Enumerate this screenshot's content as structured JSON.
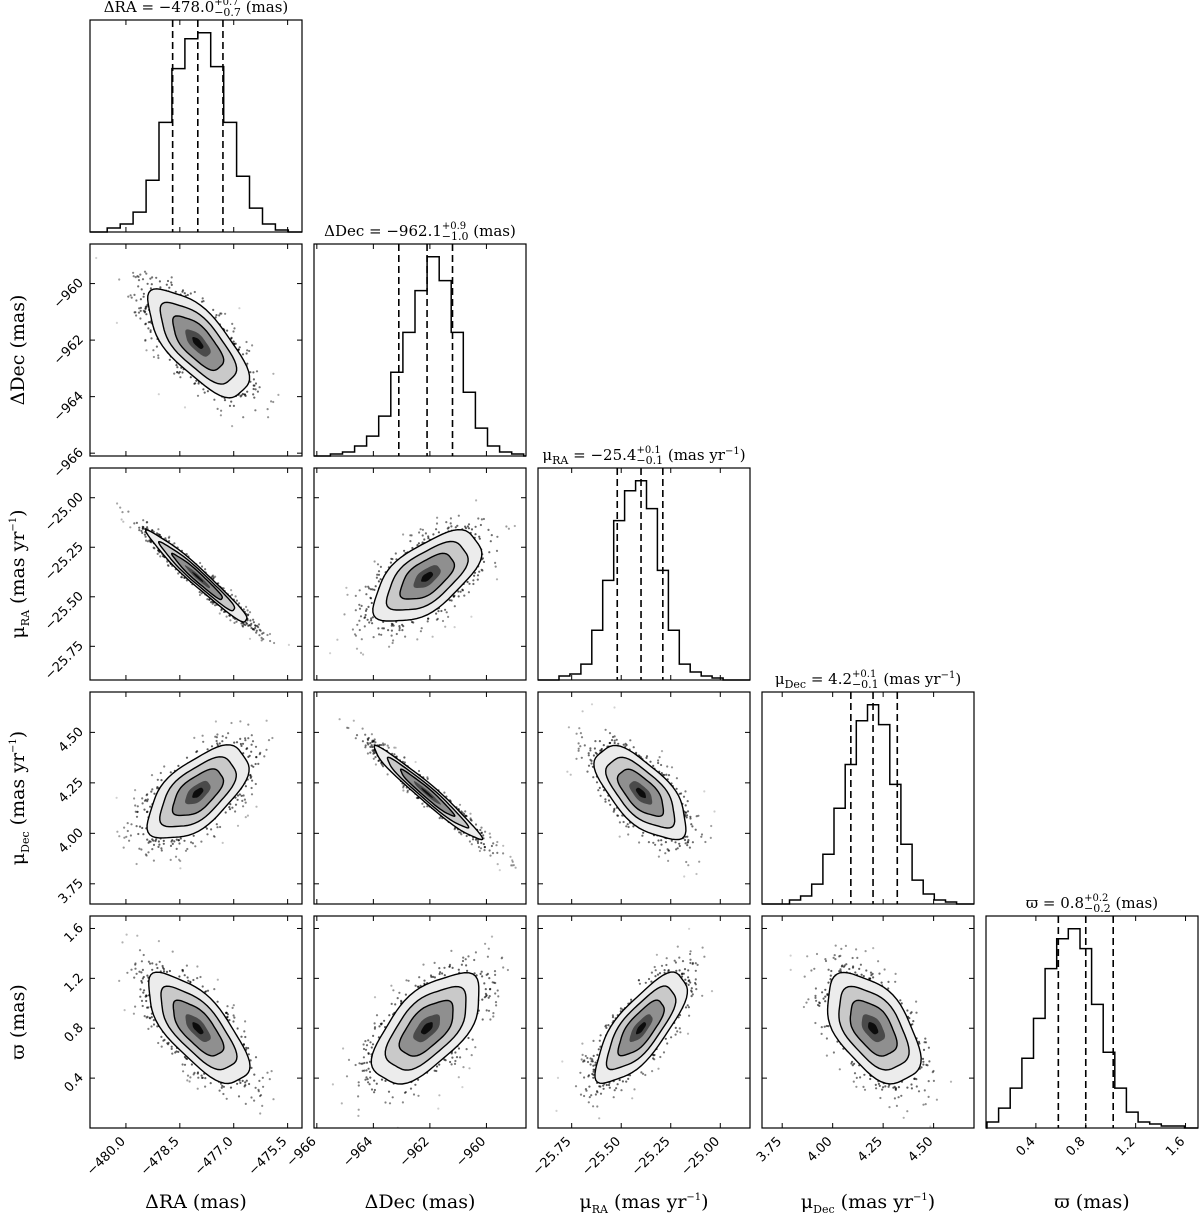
{
  "chart_data": {
    "type": "scatter",
    "title": "",
    "parameters": [
      {
        "key": "dra",
        "axis_label": "ΔRA (mas)",
        "title": {
          "pre": "ΔRA = −478.0",
          "sup": "+0.7",
          "sub": "−0.7",
          "post": " (mas)"
        },
        "median": -478.0,
        "q16": -478.7,
        "q84": -477.3,
        "range": [
          -481.0,
          -475.1
        ],
        "ticks": [
          -480.0,
          -478.5,
          -477.0,
          -475.5
        ],
        "tick_labels": [
          "−480.0",
          "−478.5",
          "−477.0",
          "−475.5"
        ],
        "hist": [
          0.02,
          0.04,
          0.1,
          0.26,
          0.55,
          0.82,
          0.97,
          1.0,
          0.83,
          0.55,
          0.28,
          0.12,
          0.04,
          0.01
        ]
      },
      {
        "key": "ddec",
        "axis_label": "ΔDec (mas)",
        "title": {
          "pre": "ΔDec = −962.1",
          "sup": "+0.9",
          "sub": "−1.0",
          "post": " (mas)"
        },
        "median": -962.1,
        "q16": -963.1,
        "q84": -961.2,
        "range": [
          -966.1,
          -958.6
        ],
        "ticks": [
          -966,
          -964,
          -962,
          -960
        ],
        "tick_labels": [
          "−966",
          "−964",
          "−962",
          "−960"
        ],
        "hist": [
          0.01,
          0.02,
          0.05,
          0.1,
          0.2,
          0.42,
          0.62,
          0.83,
          1.0,
          0.88,
          0.62,
          0.32,
          0.14,
          0.05,
          0.02,
          0.01
        ]
      },
      {
        "key": "pmra",
        "axis_label": "μRA (mas yr−1)",
        "label": {
          "sym": "μ",
          "sub": "RA",
          "unit": " (mas yr",
          "sup": "−1",
          "close": ")"
        },
        "title": {
          "pre": "= −25.4",
          "sup": "+0.1",
          "sub": "−0.1",
          "post": " (mas yr",
          "post_sup": "−1",
          "post_close": ")"
        },
        "median": -25.4,
        "q16": -25.52,
        "q84": -25.29,
        "range": [
          -25.92,
          -24.85
        ],
        "ticks": [
          -25.75,
          -25.5,
          -25.25,
          -25.0
        ],
        "tick_labels": [
          "−25.75",
          "−25.50",
          "−25.25",
          "−25.00"
        ],
        "hist": [
          0.02,
          0.03,
          0.08,
          0.25,
          0.5,
          0.8,
          0.95,
          1.0,
          0.86,
          0.55,
          0.25,
          0.08,
          0.04,
          0.02,
          0.01
        ]
      },
      {
        "key": "pmdec",
        "axis_label": "μDec (mas yr−1)",
        "label": {
          "sym": "μ",
          "sub": "Dec",
          "unit": " (mas yr",
          "sup": "−1",
          "close": ")"
        },
        "title": {
          "pre": "= 4.2",
          "sup": "+0.1",
          "sub": "−0.1",
          "post": " (mas yr",
          "post_sup": "−1",
          "post_close": ")"
        },
        "median": 4.2,
        "q16": 4.09,
        "q84": 4.32,
        "range": [
          3.65,
          4.7
        ],
        "ticks": [
          3.75,
          4.0,
          4.25,
          4.5
        ],
        "tick_labels": [
          "3.75",
          "4.00",
          "4.25",
          "4.50"
        ],
        "hist": [
          0.02,
          0.04,
          0.1,
          0.25,
          0.48,
          0.7,
          0.92,
          1.0,
          0.9,
          0.6,
          0.3,
          0.12,
          0.05,
          0.02,
          0.01
        ]
      },
      {
        "key": "plx",
        "axis_label": "ϖ (mas)",
        "title": {
          "pre": "ϖ = 0.8",
          "sup": "+0.2",
          "sub": "−0.2",
          "post": " (mas)"
        },
        "median": 0.8,
        "q16": 0.58,
        "q84": 1.02,
        "range": [
          0.0,
          1.7
        ],
        "ticks": [
          0.4,
          0.8,
          1.2,
          1.6
        ],
        "tick_labels": [
          "0.4",
          "0.8",
          "1.2",
          "1.6"
        ],
        "hist": [
          0.03,
          0.1,
          0.2,
          0.35,
          0.55,
          0.8,
          0.95,
          1.0,
          0.9,
          0.62,
          0.38,
          0.2,
          0.08,
          0.03,
          0.02,
          0.01,
          0.01
        ]
      }
    ],
    "correlations": [
      [
        0,
        1,
        -0.7
      ],
      [
        0,
        2,
        -0.97
      ],
      [
        0,
        3,
        0.6
      ],
      [
        0,
        4,
        -0.7
      ],
      [
        1,
        2,
        0.6
      ],
      [
        1,
        3,
        -0.97
      ],
      [
        1,
        4,
        0.6
      ],
      [
        2,
        3,
        -0.65
      ],
      [
        2,
        4,
        0.75
      ],
      [
        3,
        4,
        -0.5
      ]
    ],
    "samples_per_panel": 1400,
    "contour_levels_sigma": [
      0.5,
      1.0,
      1.5,
      2.0
    ]
  }
}
